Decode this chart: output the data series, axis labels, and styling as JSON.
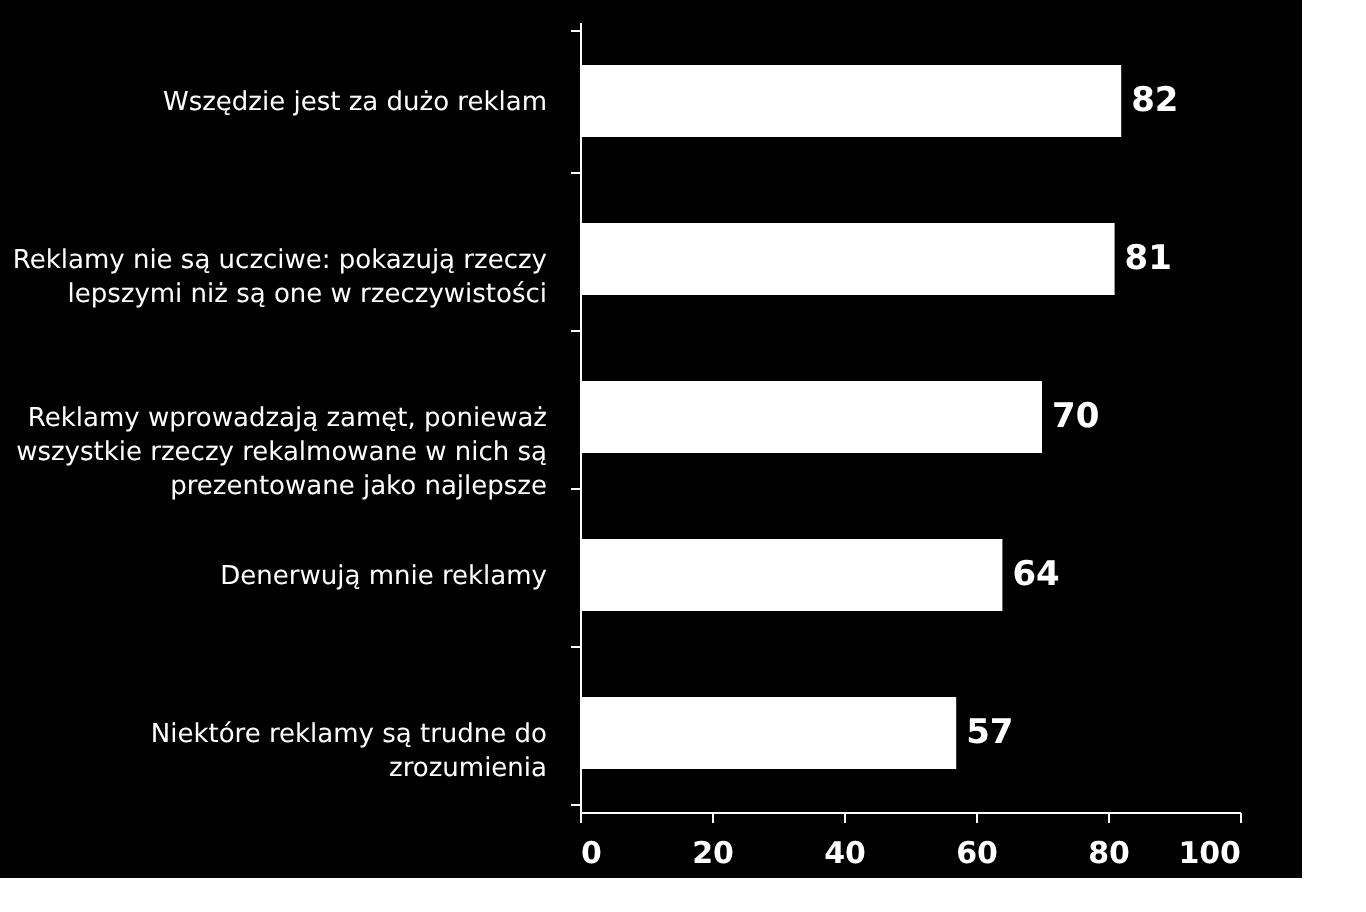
{
  "chart_data": {
    "type": "bar",
    "orientation": "horizontal",
    "categories": [
      "Wszędzie jest za dużo reklam",
      "Reklamy nie są uczciwe: pokazują rzeczy lepszymi niż są one w rzeczywistości",
      "Reklamy wprowadzają zamęt, ponieważ wszystkie rzeczy rekalmowane w nich są prezentowane jako najlepsze",
      "Denerwują mnie reklamy",
      "Niektóre reklamy są trudne do zrozumienia"
    ],
    "values": [
      82,
      81,
      70,
      64,
      57
    ],
    "color": "#ffffff",
    "xlim": [
      0,
      100
    ],
    "xticks": [
      0,
      20,
      40,
      60,
      80,
      100
    ],
    "data_labels": true,
    "grid": false
  }
}
